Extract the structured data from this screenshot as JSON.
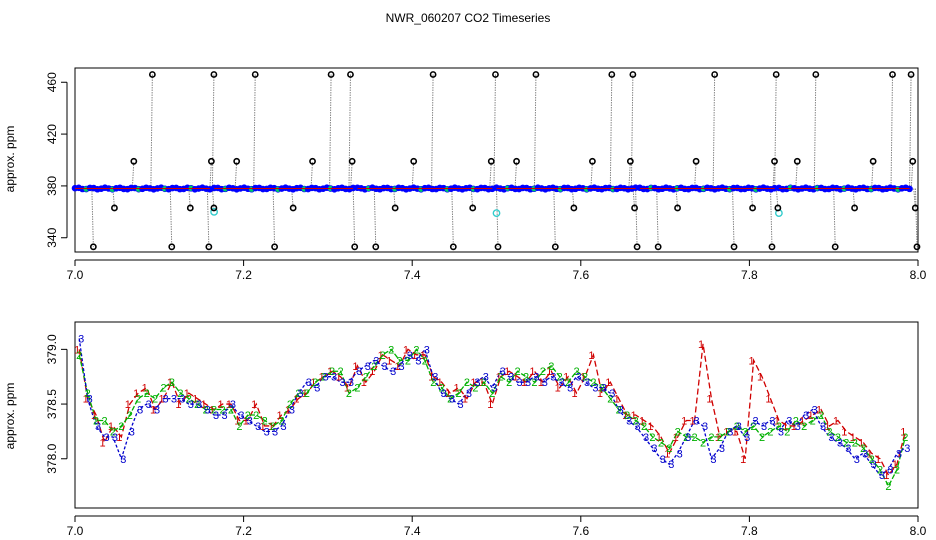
{
  "title": "NWR_060207  CO2 Timeseries",
  "colors": {
    "outline": "#000000",
    "fill_main": "#0000ff",
    "fill_alt": "#00cc66",
    "flag_cyan": "#33cccc",
    "stem": "#888888",
    "series1": "#d00000",
    "series2": "#00b000",
    "series3": "#0000cc",
    "series_mix": "#b000b0"
  },
  "chart_data": [
    {
      "type": "scatter",
      "title": "NWR_060207  CO2 Timeseries",
      "xlabel": "",
      "ylabel": "approx. ppm",
      "xlim": [
        7.0,
        8.0
      ],
      "ylim": [
        329,
        471
      ],
      "xticks": [
        "7.0",
        "7.2",
        "7.4",
        "7.6",
        "7.8",
        "8.0"
      ],
      "yticks": [
        "340",
        "380",
        "420",
        "460"
      ],
      "baseline_ppm": 378,
      "baseline_segments": [
        [
          7.0,
          7.16
        ],
        [
          7.165,
          7.33
        ],
        [
          7.335,
          7.495
        ],
        [
          7.5,
          7.665
        ],
        [
          7.67,
          7.83
        ],
        [
          7.835,
          7.99
        ]
      ],
      "cyan_flags": [
        [
          7.165,
          360
        ],
        [
          7.5,
          359
        ],
        [
          7.835,
          359
        ]
      ],
      "outliers": [
        {
          "x": 7.02,
          "y": 333
        },
        {
          "x": 7.045,
          "y": 363
        },
        {
          "x": 7.068,
          "y": 399
        },
        {
          "x": 7.09,
          "y": 466
        },
        {
          "x": 7.113,
          "y": 333
        },
        {
          "x": 7.135,
          "y": 363
        },
        {
          "x": 7.157,
          "y": 333
        },
        {
          "x": 7.16,
          "y": 399
        },
        {
          "x": 7.163,
          "y": 466
        },
        {
          "x": 7.163,
          "y": 363
        },
        {
          "x": 7.19,
          "y": 399
        },
        {
          "x": 7.212,
          "y": 466
        },
        {
          "x": 7.235,
          "y": 333
        },
        {
          "x": 7.257,
          "y": 363
        },
        {
          "x": 7.28,
          "y": 399
        },
        {
          "x": 7.302,
          "y": 466
        },
        {
          "x": 7.325,
          "y": 466
        },
        {
          "x": 7.327,
          "y": 399
        },
        {
          "x": 7.33,
          "y": 333
        },
        {
          "x": 7.355,
          "y": 333
        },
        {
          "x": 7.378,
          "y": 363
        },
        {
          "x": 7.4,
          "y": 399
        },
        {
          "x": 7.423,
          "y": 466
        },
        {
          "x": 7.447,
          "y": 333
        },
        {
          "x": 7.47,
          "y": 363
        },
        {
          "x": 7.492,
          "y": 399
        },
        {
          "x": 7.497,
          "y": 466
        },
        {
          "x": 7.5,
          "y": 333
        },
        {
          "x": 7.522,
          "y": 399
        },
        {
          "x": 7.545,
          "y": 466
        },
        {
          "x": 7.568,
          "y": 333
        },
        {
          "x": 7.59,
          "y": 363
        },
        {
          "x": 7.612,
          "y": 399
        },
        {
          "x": 7.635,
          "y": 466
        },
        {
          "x": 7.657,
          "y": 399
        },
        {
          "x": 7.66,
          "y": 466
        },
        {
          "x": 7.662,
          "y": 363
        },
        {
          "x": 7.665,
          "y": 333
        },
        {
          "x": 7.69,
          "y": 333
        },
        {
          "x": 7.713,
          "y": 363
        },
        {
          "x": 7.735,
          "y": 399
        },
        {
          "x": 7.757,
          "y": 466
        },
        {
          "x": 7.78,
          "y": 333
        },
        {
          "x": 7.802,
          "y": 363
        },
        {
          "x": 7.825,
          "y": 333
        },
        {
          "x": 7.828,
          "y": 399
        },
        {
          "x": 7.83,
          "y": 466
        },
        {
          "x": 7.832,
          "y": 363
        },
        {
          "x": 7.855,
          "y": 399
        },
        {
          "x": 7.877,
          "y": 466
        },
        {
          "x": 7.9,
          "y": 333
        },
        {
          "x": 7.923,
          "y": 363
        },
        {
          "x": 7.945,
          "y": 399
        },
        {
          "x": 7.968,
          "y": 466
        },
        {
          "x": 7.99,
          "y": 466
        },
        {
          "x": 7.992,
          "y": 399
        },
        {
          "x": 7.995,
          "y": 363
        },
        {
          "x": 7.997,
          "y": 333
        }
      ]
    },
    {
      "type": "line",
      "xlabel": "",
      "ylabel": "approx. ppm",
      "xlim": [
        7.0,
        8.0
      ],
      "ylim": [
        377.55,
        379.25
      ],
      "xticks": [
        "7.0",
        "7.2",
        "7.4",
        "7.6",
        "7.8",
        "8.0"
      ],
      "yticks": [
        "378.0",
        "378.5",
        "379.0"
      ],
      "x": [
        7.005,
        7.015,
        7.025,
        7.035,
        7.045,
        7.055,
        7.065,
        7.075,
        7.085,
        7.095,
        7.105,
        7.115,
        7.125,
        7.135,
        7.145,
        7.155,
        7.165,
        7.175,
        7.185,
        7.195,
        7.205,
        7.215,
        7.225,
        7.235,
        7.245,
        7.255,
        7.265,
        7.275,
        7.285,
        7.295,
        7.305,
        7.315,
        7.325,
        7.335,
        7.345,
        7.355,
        7.365,
        7.375,
        7.385,
        7.395,
        7.405,
        7.415,
        7.425,
        7.435,
        7.445,
        7.455,
        7.465,
        7.475,
        7.485,
        7.495,
        7.505,
        7.515,
        7.525,
        7.535,
        7.545,
        7.555,
        7.565,
        7.575,
        7.585,
        7.595,
        7.605,
        7.615,
        7.625,
        7.635,
        7.645,
        7.655,
        7.665,
        7.675,
        7.685,
        7.695,
        7.705,
        7.715,
        7.725,
        7.735,
        7.745,
        7.755,
        7.765,
        7.775,
        7.785,
        7.795,
        7.805,
        7.815,
        7.825,
        7.835,
        7.845,
        7.855,
        7.865,
        7.875,
        7.885,
        7.895,
        7.905,
        7.915,
        7.925,
        7.935,
        7.945,
        7.955,
        7.965,
        7.975,
        7.985
      ],
      "series": [
        {
          "name": "1",
          "values": [
            379.0,
            378.55,
            378.4,
            378.15,
            378.3,
            378.2,
            378.5,
            378.6,
            378.65,
            378.45,
            378.55,
            378.7,
            378.5,
            378.6,
            378.55,
            378.5,
            378.45,
            378.5,
            378.5,
            378.35,
            378.35,
            378.5,
            378.3,
            378.3,
            378.4,
            378.45,
            378.55,
            378.6,
            378.7,
            378.75,
            378.8,
            378.75,
            378.65,
            378.85,
            378.7,
            378.8,
            378.95,
            378.9,
            378.85,
            379.0,
            378.95,
            378.95,
            378.75,
            378.7,
            378.6,
            378.65,
            378.55,
            378.7,
            378.7,
            378.5,
            378.75,
            378.8,
            378.75,
            378.7,
            378.8,
            378.7,
            378.8,
            378.65,
            378.75,
            378.6,
            378.75,
            378.95,
            378.6,
            378.7,
            378.55,
            378.4,
            378.4,
            378.35,
            378.3,
            378.2,
            378.05,
            378.2,
            378.35,
            378.35,
            379.05,
            378.55,
            378.2,
            378.25,
            378.25,
            378.0,
            378.9,
            378.75,
            378.55,
            378.35,
            378.3,
            378.3,
            378.35,
            378.4,
            378.45,
            378.3,
            378.35,
            378.25,
            378.2,
            378.15,
            378.05,
            378.0,
            377.85,
            377.95,
            378.25
          ]
        },
        {
          "name": "2",
          "values": [
            378.95,
            378.6,
            378.35,
            378.35,
            378.25,
            378.3,
            378.4,
            378.55,
            378.6,
            378.55,
            378.65,
            378.7,
            378.6,
            378.55,
            378.5,
            378.45,
            378.45,
            378.45,
            378.45,
            378.3,
            378.4,
            378.4,
            378.35,
            378.3,
            378.35,
            378.5,
            378.6,
            378.6,
            378.7,
            378.75,
            378.8,
            378.8,
            378.6,
            378.65,
            378.75,
            378.85,
            378.95,
            379.0,
            378.9,
            378.9,
            379.0,
            378.9,
            378.7,
            378.65,
            378.55,
            378.6,
            378.7,
            378.65,
            378.7,
            378.6,
            378.75,
            378.7,
            378.8,
            378.75,
            378.7,
            378.8,
            378.85,
            378.75,
            378.7,
            378.8,
            378.75,
            378.7,
            378.65,
            378.55,
            378.45,
            378.4,
            378.35,
            378.3,
            378.2,
            378.15,
            378.1,
            378.25,
            378.2,
            378.2,
            378.15,
            378.2,
            378.2,
            378.25,
            378.3,
            378.25,
            378.3,
            378.2,
            378.25,
            378.3,
            378.25,
            378.35,
            378.3,
            378.35,
            378.4,
            378.25,
            378.2,
            378.15,
            378.15,
            378.1,
            378.0,
            377.9,
            377.75,
            377.9,
            378.2
          ]
        },
        {
          "name": "3",
          "values": [
            379.1,
            378.55,
            378.3,
            378.2,
            378.2,
            378.0,
            378.25,
            378.45,
            378.5,
            378.45,
            378.55,
            378.55,
            378.55,
            378.5,
            378.5,
            378.45,
            378.4,
            378.4,
            378.5,
            378.4,
            378.35,
            378.3,
            378.25,
            378.25,
            378.3,
            378.45,
            378.6,
            378.7,
            378.65,
            378.75,
            378.75,
            378.7,
            378.7,
            378.8,
            378.85,
            378.9,
            378.85,
            378.8,
            378.85,
            378.95,
            378.9,
            379.0,
            378.75,
            378.6,
            378.55,
            378.5,
            378.6,
            378.7,
            378.75,
            378.65,
            378.8,
            378.75,
            378.7,
            378.7,
            378.75,
            378.7,
            378.75,
            378.7,
            378.65,
            378.75,
            378.7,
            378.65,
            378.65,
            378.6,
            378.45,
            378.35,
            378.3,
            378.2,
            378.1,
            378.0,
            377.95,
            378.05,
            378.2,
            378.35,
            378.3,
            378.0,
            378.1,
            378.25,
            378.3,
            378.2,
            378.35,
            378.3,
            378.35,
            378.25,
            378.35,
            378.3,
            378.4,
            378.45,
            378.3,
            378.2,
            378.15,
            378.1,
            378.0,
            378.05,
            377.95,
            377.85,
            377.9,
            378.05,
            378.1
          ]
        }
      ]
    }
  ]
}
